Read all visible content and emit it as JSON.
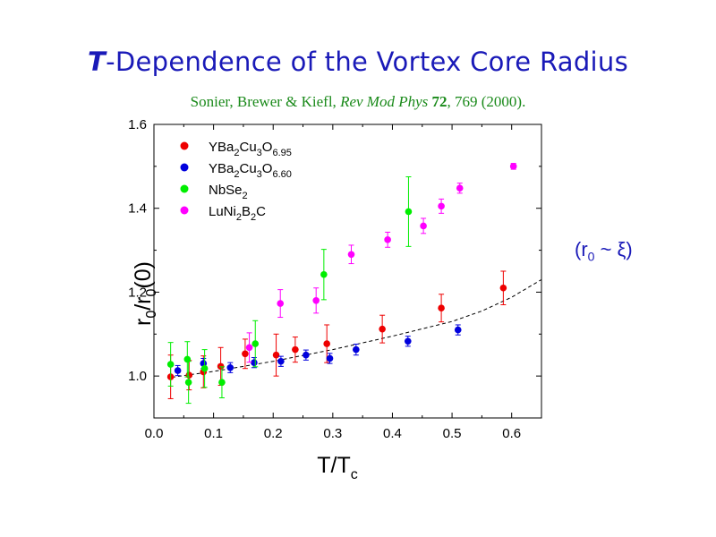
{
  "title": {
    "italic_letter": "T",
    "rest": "-Dependence of the  Vortex Core Radius"
  },
  "citation": {
    "authors": "Sonier, Brewer & Kiefl, ",
    "journal": "Rev Mod Phys",
    "volume": "72",
    "rest": ", 769 (2000)."
  },
  "side_note": {
    "open": "(r",
    "sub": "0",
    "rest": " ~ ξ)"
  },
  "colors": {
    "title": "#1a1ab8",
    "citation": "#1a8a1a",
    "series_red": "#ee0000",
    "series_blue": "#0000dd",
    "series_green": "#00ee00",
    "series_magenta": "#ff00ff",
    "fit_line": "#000000"
  },
  "chart_data": {
    "type": "scatter",
    "xlabel": "T/T_c",
    "ylabel": "r_0/r_0(0)",
    "xlim": [
      0.0,
      0.65
    ],
    "ylim": [
      0.9,
      1.6
    ],
    "x_ticks": [
      "0.0",
      "0.1",
      "0.2",
      "0.3",
      "0.4",
      "0.5",
      "0.6"
    ],
    "y_ticks": [
      "1.0",
      "1.2",
      "1.4",
      "1.6"
    ],
    "legend_position": "top-left",
    "series": [
      {
        "name": "YBa2Cu3O6.95",
        "legend": {
          "base": "YBa",
          "s1": "2",
          "m1": "Cu",
          "s2": "3",
          "m2": "O",
          "s3": "6.95"
        },
        "color": "#ee0000",
        "points": [
          {
            "x": 0.028,
            "y": 0.998,
            "err": 0.052
          },
          {
            "x": 0.059,
            "y": 1.002,
            "err": 0.035
          },
          {
            "x": 0.083,
            "y": 1.01,
            "err": 0.038
          },
          {
            "x": 0.112,
            "y": 1.023,
            "err": 0.045
          },
          {
            "x": 0.153,
            "y": 1.053,
            "err": 0.035
          },
          {
            "x": 0.205,
            "y": 1.05,
            "err": 0.05
          },
          {
            "x": 0.237,
            "y": 1.063,
            "err": 0.03
          },
          {
            "x": 0.29,
            "y": 1.077,
            "err": 0.045
          },
          {
            "x": 0.383,
            "y": 1.112,
            "err": 0.033
          },
          {
            "x": 0.482,
            "y": 1.162,
            "err": 0.033
          },
          {
            "x": 0.586,
            "y": 1.21,
            "err": 0.04
          }
        ]
      },
      {
        "name": "YBa2Cu3O6.60",
        "legend": {
          "base": "YBa",
          "s1": "2",
          "m1": "Cu",
          "s2": "3",
          "m2": "O",
          "s3": "6.60"
        },
        "color": "#0000dd",
        "points": [
          {
            "x": 0.04,
            "y": 1.013,
            "err": 0.012
          },
          {
            "x": 0.083,
            "y": 1.03,
            "err": 0.012
          },
          {
            "x": 0.128,
            "y": 1.02,
            "err": 0.012
          },
          {
            "x": 0.168,
            "y": 1.032,
            "err": 0.012
          },
          {
            "x": 0.213,
            "y": 1.035,
            "err": 0.012
          },
          {
            "x": 0.255,
            "y": 1.05,
            "err": 0.012
          },
          {
            "x": 0.295,
            "y": 1.042,
            "err": 0.012
          },
          {
            "x": 0.339,
            "y": 1.063,
            "err": 0.013
          },
          {
            "x": 0.426,
            "y": 1.083,
            "err": 0.012
          },
          {
            "x": 0.51,
            "y": 1.11,
            "err": 0.012
          }
        ]
      },
      {
        "name": "NbSe2",
        "legend": {
          "base": "NbSe",
          "s1": "2",
          "m1": "",
          "s2": "",
          "m2": "",
          "s3": ""
        },
        "color": "#00ee00",
        "points": [
          {
            "x": 0.028,
            "y": 1.028,
            "err": 0.052
          },
          {
            "x": 0.056,
            "y": 1.04,
            "err": 0.042
          },
          {
            "x": 0.058,
            "y": 0.985,
            "err": 0.05
          },
          {
            "x": 0.085,
            "y": 1.018,
            "err": 0.045
          },
          {
            "x": 0.114,
            "y": 0.985,
            "err": 0.037
          },
          {
            "x": 0.17,
            "y": 1.077,
            "err": 0.055
          },
          {
            "x": 0.285,
            "y": 1.242,
            "err": 0.06
          },
          {
            "x": 0.427,
            "y": 1.392,
            "err": 0.083
          }
        ]
      },
      {
        "name": "LuNi2B2C",
        "legend": {
          "base": "LuNi",
          "s1": "2",
          "m1": "B",
          "s2": "2",
          "m2": "C",
          "s3": ""
        },
        "color": "#ff00ff",
        "points": [
          {
            "x": 0.16,
            "y": 1.068,
            "err": 0.035
          },
          {
            "x": 0.212,
            "y": 1.173,
            "err": 0.033
          },
          {
            "x": 0.272,
            "y": 1.18,
            "err": 0.03
          },
          {
            "x": 0.331,
            "y": 1.29,
            "err": 0.022
          },
          {
            "x": 0.392,
            "y": 1.325,
            "err": 0.018
          },
          {
            "x": 0.452,
            "y": 1.358,
            "err": 0.018
          },
          {
            "x": 0.482,
            "y": 1.405,
            "err": 0.017
          },
          {
            "x": 0.513,
            "y": 1.448,
            "err": 0.012
          },
          {
            "x": 0.603,
            "y": 1.5,
            "err": 0.007
          }
        ]
      }
    ],
    "fit_curve": {
      "style": "dashed",
      "x": [
        0.03,
        0.1,
        0.2,
        0.3,
        0.4,
        0.5,
        0.55,
        0.6,
        0.65
      ],
      "y": [
        0.997,
        1.011,
        1.035,
        1.063,
        1.095,
        1.13,
        1.155,
        1.188,
        1.23
      ]
    }
  }
}
